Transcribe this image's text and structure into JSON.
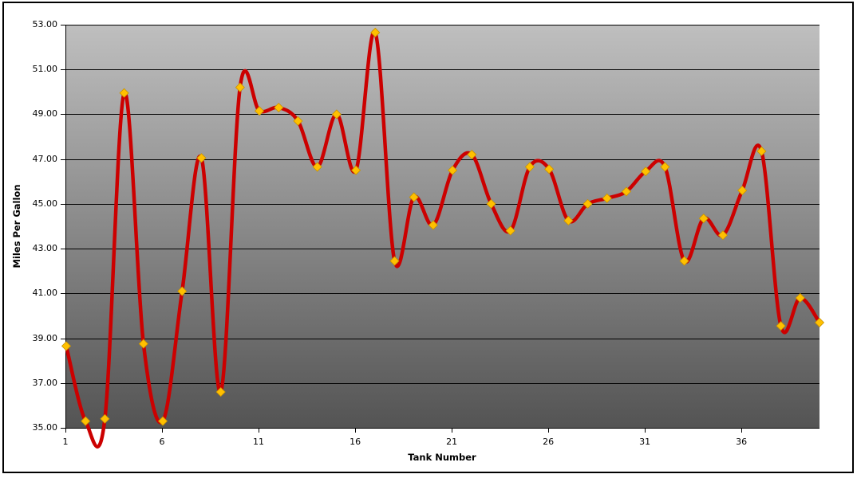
{
  "chart_data": {
    "type": "line",
    "title": "",
    "xlabel": "Tank Number",
    "ylabel": "Miles Per Gallon",
    "x": [
      1,
      2,
      3,
      4,
      5,
      6,
      7,
      8,
      9,
      10,
      11,
      12,
      13,
      14,
      15,
      16,
      17,
      18,
      19,
      20,
      21,
      22,
      23,
      24,
      25,
      26,
      27,
      28,
      29,
      30,
      31,
      32,
      33,
      34,
      35,
      36,
      37,
      38,
      39,
      40
    ],
    "values": [
      38.65,
      35.3,
      35.4,
      49.95,
      38.75,
      35.3,
      41.1,
      47.05,
      36.6,
      50.2,
      49.15,
      49.3,
      48.7,
      46.65,
      49.0,
      46.5,
      52.65,
      42.45,
      45.3,
      44.05,
      46.5,
      47.2,
      45.0,
      43.8,
      46.65,
      46.55,
      44.25,
      45.0,
      45.25,
      45.55,
      46.45,
      46.65,
      42.45,
      44.35,
      43.6,
      45.6,
      47.35,
      39.55,
      40.8,
      39.7
    ],
    "ylim": [
      35,
      53
    ],
    "ytick_step": 2,
    "yticks": [
      53,
      51,
      49,
      47,
      45,
      43,
      41,
      39,
      37,
      35
    ],
    "ytick_labels": [
      "53.00",
      "51.00",
      "49.00",
      "47.00",
      "45.00",
      "43.00",
      "41.00",
      "39.00",
      "37.00",
      "35.00"
    ],
    "xticks": [
      1,
      6,
      11,
      16,
      21,
      26,
      31,
      36
    ],
    "xtick_labels": [
      "1",
      "6",
      "11",
      "16",
      "21",
      "26",
      "31",
      "36"
    ],
    "grid": "horizontal",
    "legend": "none",
    "smooth": true,
    "marker_shape": "diamond",
    "line_color": "#CC0000",
    "marker_color": "#FFC000",
    "marker_edge_color": "#C89200",
    "plot_bg_top": "#BFBFBF",
    "plot_bg_bottom": "#545454"
  }
}
